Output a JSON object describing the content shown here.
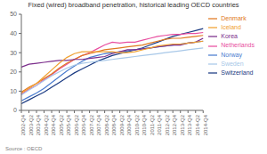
{
  "chart_data": {
    "type": "line",
    "title": "Fixed (wired) broadband penetration, historical leading OECD countries",
    "annotations": [
      "Source : OECD"
    ],
    "categories": [
      "2002-Q4",
      "2003-Q2",
      "2003-Q4",
      "2004-Q2",
      "2004-Q4",
      "2005-Q2",
      "2005-Q4",
      "2006-Q2",
      "2006-Q4",
      "2007-Q2",
      "2007-Q4",
      "2008-Q2",
      "2008-Q4",
      "2009-Q2",
      "2009-Q4",
      "2010-Q2",
      "2010-Q4",
      "2011-Q2",
      "2011-Q4",
      "2012-Q2",
      "2012-Q4",
      "2013-Q2",
      "2013-Q4",
      "2014-Q2",
      "2014-Q4"
    ],
    "series": [
      {
        "name": "Switzerland",
        "color": "#1a3a82",
        "values": [
          3.5,
          5.5,
          7.5,
          9.5,
          12.0,
          14.5,
          17.0,
          19.5,
          21.5,
          23.5,
          25.5,
          27.0,
          28.5,
          29.5,
          30.5,
          31.5,
          32.5,
          34.0,
          35.5,
          37.0,
          38.5,
          39.5,
          40.5,
          41.5,
          42.5
        ]
      },
      {
        "name": "Netherlands",
        "color": "#e84fa0",
        "values": [
          8.5,
          11.0,
          13.0,
          16.0,
          18.5,
          21.5,
          24.0,
          26.5,
          28.5,
          30.0,
          32.0,
          34.0,
          35.5,
          35.0,
          35.5,
          35.5,
          36.5,
          37.5,
          38.5,
          39.0,
          39.5,
          39.5,
          40.0,
          40.0,
          40.5
        ]
      },
      {
        "name": "Denmark",
        "color": "#e07820",
        "values": [
          9.5,
          12.0,
          14.0,
          16.5,
          19.0,
          22.0,
          24.5,
          26.5,
          28.5,
          29.5,
          30.5,
          31.5,
          32.0,
          32.5,
          33.0,
          33.5,
          34.0,
          35.0,
          36.0,
          37.0,
          37.5,
          37.5,
          38.0,
          38.5,
          39.0
        ]
      },
      {
        "name": "Norway",
        "color": "#4a7ccf",
        "values": [
          5.0,
          7.0,
          9.0,
          11.5,
          14.5,
          17.5,
          20.5,
          23.0,
          25.5,
          27.5,
          28.5,
          29.5,
          30.0,
          30.5,
          31.0,
          31.5,
          32.0,
          32.5,
          33.0,
          33.5,
          34.0,
          34.5,
          35.0,
          35.5,
          36.0
        ]
      },
      {
        "name": "Korea",
        "color": "#7b2d8b",
        "values": [
          22.5,
          24.0,
          24.5,
          25.0,
          25.5,
          26.0,
          26.0,
          26.5,
          26.5,
          27.0,
          27.5,
          28.0,
          29.5,
          30.5,
          31.5,
          31.5,
          32.0,
          32.5,
          33.0,
          33.5,
          34.0,
          34.0,
          35.0,
          35.5,
          37.5
        ]
      },
      {
        "name": "Iceland",
        "color": "#f0a030",
        "values": [
          9.0,
          11.5,
          14.0,
          17.5,
          21.0,
          24.5,
          27.5,
          29.5,
          30.5,
          30.5,
          30.5,
          30.5,
          30.5,
          30.0,
          30.0,
          30.5,
          31.5,
          32.5,
          33.5,
          34.0,
          34.5,
          34.5,
          35.0,
          35.5,
          36.0
        ]
      },
      {
        "name": "Sweden",
        "color": "#a8c8e8",
        "values": [
          8.0,
          10.5,
          13.0,
          15.5,
          18.0,
          20.0,
          22.0,
          23.5,
          24.5,
          25.0,
          25.5,
          26.0,
          26.5,
          27.0,
          27.5,
          28.0,
          28.5,
          29.0,
          29.5,
          30.0,
          30.5,
          31.0,
          31.5,
          32.0,
          32.5
        ]
      }
    ],
    "ylim": [
      0,
      50
    ],
    "yticks": [
      0,
      10,
      20,
      30,
      40,
      50
    ],
    "grid": false,
    "legend": "right"
  }
}
